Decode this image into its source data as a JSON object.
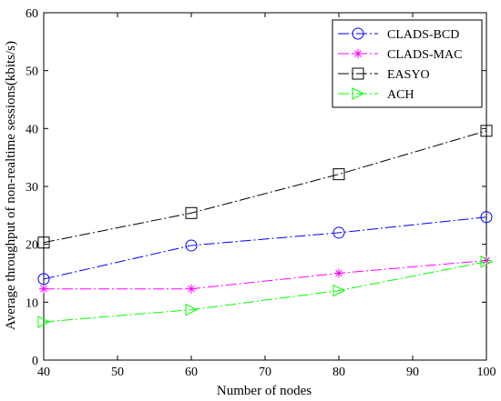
{
  "chart_data": {
    "type": "line",
    "xlabel": "Number of nodes",
    "ylabel": "Average throughput of non-realtime sessions(kbits/s)",
    "xlim": [
      40,
      100
    ],
    "ylim": [
      0,
      60
    ],
    "xticks": [
      40,
      50,
      60,
      70,
      80,
      90,
      100
    ],
    "yticks": [
      0,
      10,
      20,
      30,
      40,
      50,
      60
    ],
    "grid": false,
    "legend_position": "top-right",
    "x": [
      40,
      60,
      80,
      100
    ],
    "series": [
      {
        "name": "CLADS-BCD",
        "values": [
          14.0,
          19.8,
          22.0,
          24.7
        ],
        "color": "#0000ff",
        "marker": "circle"
      },
      {
        "name": "CLADS-MAC",
        "values": [
          12.3,
          12.3,
          15.0,
          17.2
        ],
        "color": "#ff00ff",
        "marker": "asterisk"
      },
      {
        "name": "EASYO",
        "values": [
          20.3,
          25.4,
          32.1,
          39.6
        ],
        "color": "#000000",
        "marker": "square"
      },
      {
        "name": "ACH",
        "values": [
          6.6,
          8.7,
          12.0,
          17.0
        ],
        "color": "#00ff00",
        "marker": "triangle-right"
      }
    ]
  }
}
